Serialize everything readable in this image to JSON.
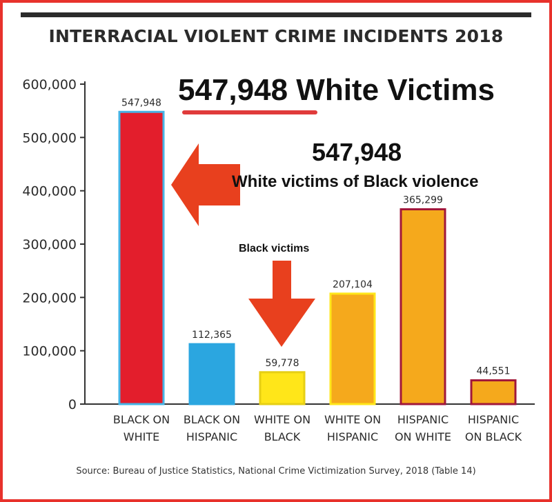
{
  "chart_data": {
    "type": "bar",
    "title": "INTERRACIAL VIOLENT CRIME INCIDENTS 2018",
    "categories": [
      [
        "BLACK ON",
        "WHITE"
      ],
      [
        "BLACK ON",
        "HISPANIC"
      ],
      [
        "WHITE ON",
        "BLACK"
      ],
      [
        "WHITE ON",
        "HISPANIC"
      ],
      [
        "HISPANIC",
        "ON WHITE"
      ],
      [
        "HISPANIC",
        "ON BLACK"
      ]
    ],
    "values": [
      547948,
      112365,
      59778,
      207104,
      365299,
      44551
    ],
    "value_labels": [
      "547,948",
      "112,365",
      "59,778",
      "207,104",
      "365,299",
      "44,551"
    ],
    "yticks": [
      "0",
      "100,000",
      "200,000",
      "300,000",
      "400,000",
      "500,000",
      "600,000"
    ],
    "ytick_values": [
      0,
      100000,
      200000,
      300000,
      400000,
      500000,
      600000
    ],
    "ylim": [
      0,
      600000
    ],
    "grid": false,
    "colors": {
      "fills": [
        "#e31e2c",
        "#2ba6e0",
        "#ffe619",
        "#f5a91c",
        "#f5a91c",
        "#f5a91c"
      ],
      "outlines": [
        "#46b4e6",
        "#2ba6e0",
        "#e6cf14",
        "#ffe619",
        "#a1173a",
        "#a1173a"
      ],
      "axis": "#333333"
    }
  },
  "annotations": {
    "headline_number": "547,948",
    "headline_text": "White Victims",
    "callout_number": "547,948",
    "callout_text": "White victims of Black violence",
    "small_label": "Black victims",
    "arrow_color": "#e8401e",
    "underline_color": "#e03b3b"
  },
  "source": "Source: Bureau of Justice Statistics, National Crime Victimization Survey, 2018 (Table 14)",
  "frame_color": "#e8322c"
}
